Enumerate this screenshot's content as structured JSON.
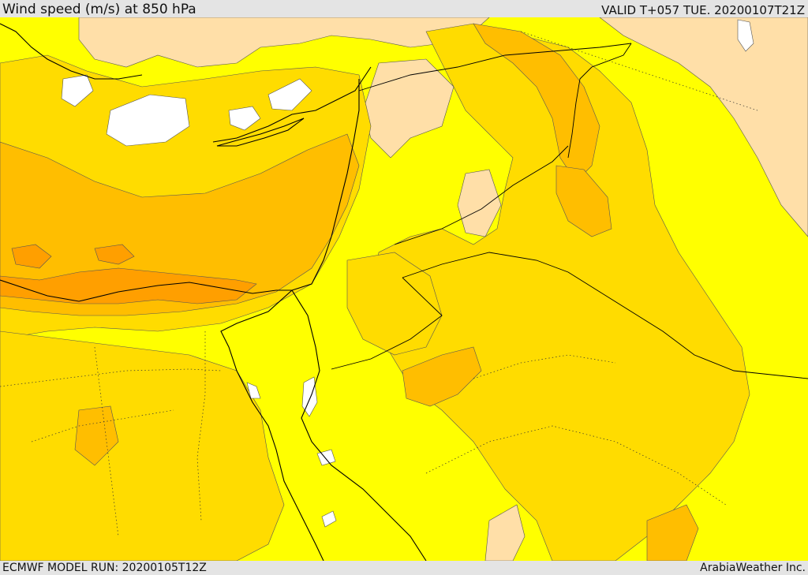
{
  "header": {
    "title": "Wind speed (m/s) at 850 hPa",
    "valid": "VALID T+057 TUE. 20200107T21Z"
  },
  "footer": {
    "model_run": "ECMWF MODEL RUN: 20200105T12Z",
    "credit": "ArabiaWeather Inc."
  },
  "colors": {
    "calm": "#ffffff",
    "light_tan": "#ffdfa8",
    "yellow": "#ffff00",
    "gold": "#ffdc00",
    "amber": "#ffbe00",
    "orange": "#ff9f00",
    "coast": "#000000"
  }
}
